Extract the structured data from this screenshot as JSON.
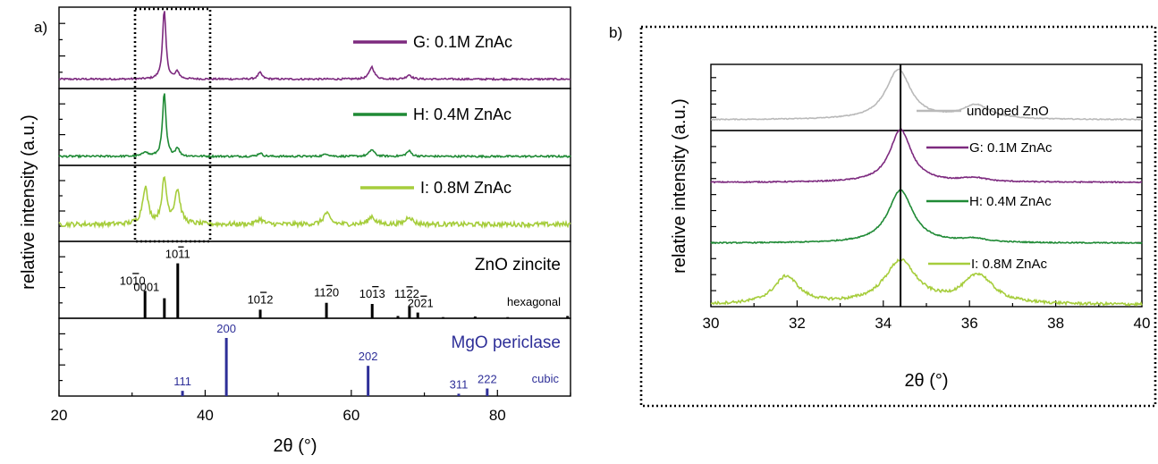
{
  "colors": {
    "G": "#7d2a7f",
    "H": "#1f8a35",
    "I": "#a6cd3c",
    "undoped": "#b9b9b9",
    "mgo": "#2e2f98",
    "zno": "#000000"
  },
  "chart_data": [
    {
      "panel": "a)",
      "type": "line",
      "xlabel": "2θ (°)",
      "ylabel": "relative intensity (a.u.)",
      "xlim": [
        20,
        90
      ],
      "xticks": [
        20,
        40,
        60,
        80
      ],
      "highlight_box_x": [
        30.5,
        40.2
      ],
      "series": [
        {
          "name": "G: 0.1M ZnAc",
          "color_key": "G",
          "baseline": 0.08,
          "noise": 0.012,
          "peaks": [
            [
              34.4,
              0.95,
              0.28
            ],
            [
              36.2,
              0.1,
              0.3
            ],
            [
              47.5,
              0.09,
              0.35
            ],
            [
              62.8,
              0.17,
              0.4
            ],
            [
              67.9,
              0.06,
              0.4
            ]
          ]
        },
        {
          "name": "H: 0.4M ZnAc",
          "color_key": "H",
          "baseline": 0.08,
          "noise": 0.014,
          "peaks": [
            [
              31.8,
              0.07,
              0.35
            ],
            [
              34.4,
              0.93,
              0.28
            ],
            [
              36.2,
              0.12,
              0.3
            ],
            [
              47.5,
              0.05,
              0.35
            ],
            [
              56.6,
              0.04,
              0.4
            ],
            [
              62.8,
              0.1,
              0.4
            ],
            [
              67.9,
              0.08,
              0.4
            ]
          ]
        },
        {
          "name": "I: 0.8M ZnAc",
          "color_key": "I",
          "baseline": 0.2,
          "noise": 0.035,
          "peaks": [
            [
              31.8,
              0.55,
              0.45
            ],
            [
              34.4,
              0.65,
              0.4
            ],
            [
              36.2,
              0.5,
              0.45
            ],
            [
              47.5,
              0.08,
              0.5
            ],
            [
              56.6,
              0.17,
              0.5
            ],
            [
              62.8,
              0.12,
              0.5
            ],
            [
              67.9,
              0.12,
              0.5
            ]
          ]
        }
      ],
      "references": [
        {
          "title": "ZnO zincite",
          "note": "hexagonal",
          "color_key": "zno",
          "lines": [
            {
              "x": 31.77,
              "h": 0.48,
              "label": "10-10"
            },
            {
              "x": 34.42,
              "h": 0.35,
              "label": "0001"
            },
            {
              "x": 36.25,
              "h": 0.96,
              "label": "10-11"
            },
            {
              "x": 47.54,
              "h": 0.15,
              "label": "10-12"
            },
            {
              "x": 56.6,
              "h": 0.27,
              "label": "11-20"
            },
            {
              "x": 62.86,
              "h": 0.25,
              "label": "10-13"
            },
            {
              "x": 66.38,
              "h": 0.04,
              "label": ""
            },
            {
              "x": 67.96,
              "h": 0.2,
              "label": "11-22"
            },
            {
              "x": 69.1,
              "h": 0.1,
              "label": "20-21"
            },
            {
              "x": 72.56,
              "h": 0.02,
              "label": ""
            },
            {
              "x": 76.95,
              "h": 0.03,
              "label": ""
            },
            {
              "x": 81.4,
              "h": 0.02,
              "label": ""
            },
            {
              "x": 89.6,
              "h": 0.04,
              "label": ""
            }
          ]
        },
        {
          "title": "MgO periclase",
          "note": "cubic",
          "color_key": "mgo",
          "lines": [
            {
              "x": 36.9,
              "h": 0.09,
              "label": "111"
            },
            {
              "x": 42.9,
              "h": 1.0,
              "label": "200"
            },
            {
              "x": 62.3,
              "h": 0.52,
              "label": "202"
            },
            {
              "x": 74.7,
              "h": 0.04,
              "label": "311"
            },
            {
              "x": 78.6,
              "h": 0.13,
              "label": "222"
            }
          ]
        }
      ]
    },
    {
      "panel": "b)",
      "type": "line",
      "xlabel": "2θ (°)",
      "ylabel": "relative intensity (a.u.)",
      "xlim": [
        30,
        40
      ],
      "xticks": [
        30,
        32,
        34,
        36,
        38,
        40
      ],
      "vline_x": 34.4,
      "series": [
        {
          "name": "undoped ZnO",
          "color_key": "undoped",
          "offset": 3,
          "noise": 0.008,
          "peaks": [
            [
              34.35,
              0.9,
              0.35
            ],
            [
              36.15,
              0.25,
              0.4
            ]
          ]
        },
        {
          "name": "G: 0.1M ZnAc",
          "color_key": "G",
          "offset": 2,
          "noise": 0.01,
          "peaks": [
            [
              34.4,
              0.95,
              0.3
            ],
            [
              36.1,
              0.07,
              0.35
            ]
          ]
        },
        {
          "name": "H: 0.4M ZnAc",
          "color_key": "H",
          "offset": 1,
          "noise": 0.01,
          "peaks": [
            [
              34.4,
              0.95,
              0.35
            ],
            [
              36.1,
              0.06,
              0.4
            ]
          ]
        },
        {
          "name": "I: 0.8M ZnAc",
          "color_key": "I",
          "offset": 0,
          "noise": 0.025,
          "peaks": [
            [
              31.75,
              0.5,
              0.35
            ],
            [
              34.4,
              0.78,
              0.45
            ],
            [
              36.2,
              0.52,
              0.42
            ]
          ]
        }
      ]
    }
  ],
  "labels": {
    "panel_a": "a)",
    "panel_b": "b)",
    "ylabel_a": "relative intensity (a.u.)",
    "ylabel_b": "relative intensity (a.u.)",
    "xlabel_a": "2θ (°)",
    "xlabel_b": "2θ (°)",
    "legend_a": [
      "G: 0.1M ZnAc",
      "H: 0.4M ZnAc",
      "I: 0.8M ZnAc"
    ],
    "legend_b": [
      "undoped ZnO",
      "G: 0.1M ZnAc",
      "H: 0.4M ZnAc",
      "I: 0.8M ZnAc"
    ],
    "zno_title": "ZnO zincite",
    "zno_note": "hexagonal",
    "mgo_title": "MgO periclase",
    "mgo_note": "cubic",
    "xticks_a": [
      "20",
      "40",
      "60",
      "80"
    ],
    "xticks_b": [
      "30",
      "32",
      "34",
      "36",
      "38",
      "40"
    ]
  }
}
